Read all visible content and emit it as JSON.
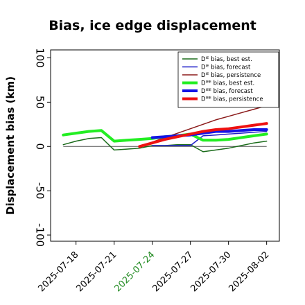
{
  "chart_data": {
    "type": "line",
    "title": "Bias, ice edge displacement",
    "xlabel": "",
    "ylabel": "Displacement bias (km)",
    "ylim": [
      -107,
      109
    ],
    "xlim": [
      "2025-07-16",
      "2025-08-03"
    ],
    "x_ticks": [
      "2025-07-18",
      "2025-07-21",
      "2025-07-24",
      "2025-07-27",
      "2025-07-30",
      "2025-08-02"
    ],
    "x_tick_colors": [
      "#000000",
      "#000000",
      "#228b22",
      "#000000",
      "#000000",
      "#000000"
    ],
    "y_ticks": [
      100,
      50,
      0,
      -50,
      -100
    ],
    "legend_position": "top-right",
    "zero_line": true,
    "series": [
      {
        "name": "Dᴵᴱ bias, best est.",
        "color": "#1a6b1a",
        "width": 1.5,
        "x": [
          "2025-07-17",
          "2025-07-18",
          "2025-07-19",
          "2025-07-20",
          "2025-07-21",
          "2025-07-22",
          "2025-07-23",
          "2025-07-24",
          "2025-07-25",
          "2025-07-26",
          "2025-07-27",
          "2025-07-28",
          "2025-07-29",
          "2025-07-30",
          "2025-07-31",
          "2025-08-01",
          "2025-08-02"
        ],
        "values": [
          2,
          6,
          9,
          10,
          -4,
          -3,
          -2,
          1,
          1,
          2,
          2,
          -6,
          -4,
          -2,
          1,
          4,
          6
        ]
      },
      {
        "name": "Dᴵᴱ bias, forecast",
        "color": "#1c1cc8",
        "width": 1.5,
        "x": [
          "2025-07-24",
          "2025-07-25",
          "2025-07-26",
          "2025-07-27",
          "2025-07-28",
          "2025-07-29",
          "2025-07-30",
          "2025-07-31",
          "2025-08-01",
          "2025-08-02"
        ],
        "values": [
          1,
          1,
          1,
          1,
          12,
          13,
          14,
          15,
          16,
          17
        ]
      },
      {
        "name": "Dᴵᴱ bias, persistence",
        "color": "#8b1a1a",
        "width": 1.5,
        "x": [
          "2025-07-23",
          "2025-07-24",
          "2025-07-25",
          "2025-07-26",
          "2025-07-27",
          "2025-07-28",
          "2025-07-29",
          "2025-07-30",
          "2025-07-31",
          "2025-08-01",
          "2025-08-02"
        ],
        "values": [
          0,
          5,
          10,
          15,
          20,
          25,
          30,
          34,
          38,
          42,
          46
        ]
      },
      {
        "name": "Dᴵᴱᴱ bias, best est.",
        "color": "#22ee22",
        "width": 4,
        "x": [
          "2025-07-17",
          "2025-07-18",
          "2025-07-19",
          "2025-07-20",
          "2025-07-21",
          "2025-07-22",
          "2025-07-23",
          "2025-07-24",
          "2025-07-25",
          "2025-07-26",
          "2025-07-27",
          "2025-07-28",
          "2025-07-29",
          "2025-07-30",
          "2025-07-31",
          "2025-08-01",
          "2025-08-02"
        ],
        "values": [
          13,
          15,
          17,
          18,
          6,
          7,
          8,
          9,
          11,
          12,
          14,
          7,
          7,
          8,
          10,
          12,
          14
        ]
      },
      {
        "name": "Dᴵᴱᴱ bias, forecast",
        "color": "#1414e6",
        "width": 4,
        "x": [
          "2025-07-24",
          "2025-07-25",
          "2025-07-26",
          "2025-07-27",
          "2025-07-28",
          "2025-07-29",
          "2025-07-30",
          "2025-07-31",
          "2025-08-01",
          "2025-08-02"
        ],
        "values": [
          10,
          11,
          12,
          13,
          15,
          17,
          17,
          18,
          19,
          19
        ]
      },
      {
        "name": "Dᴵᴱᴱ bias, persistence",
        "color": "#ee1111",
        "width": 4,
        "x": [
          "2025-07-23",
          "2025-07-24",
          "2025-07-25",
          "2025-07-26",
          "2025-07-27",
          "2025-07-28",
          "2025-07-29",
          "2025-07-30",
          "2025-07-31",
          "2025-08-01",
          "2025-08-02"
        ],
        "values": [
          0,
          4,
          8,
          11,
          14,
          17,
          19,
          20,
          22,
          24,
          26
        ]
      }
    ]
  }
}
